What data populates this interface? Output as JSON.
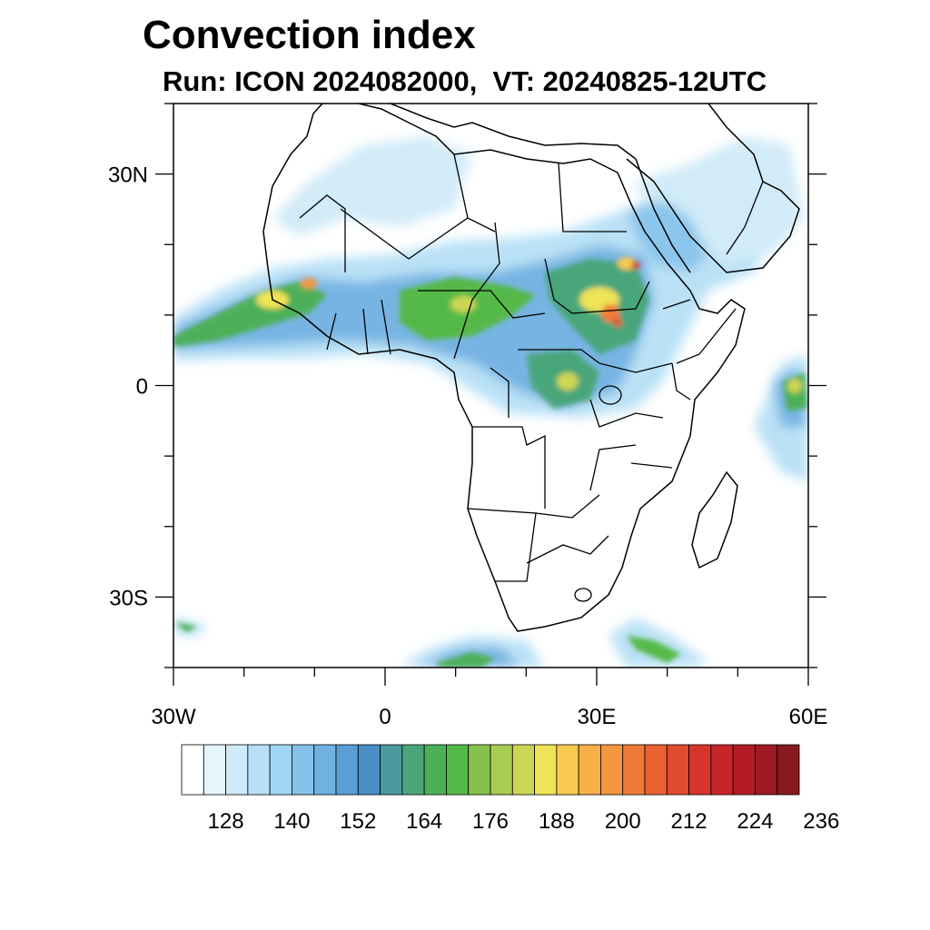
{
  "title": "Convection index",
  "subtitle": "Run: ICON 2024082000,  VT: 20240825-12UTC",
  "map": {
    "lon_range": [
      -30,
      60
    ],
    "lat_range": [
      -40,
      40
    ],
    "lon_ticks": [
      {
        "value": -30,
        "label": "30W"
      },
      {
        "value": 0,
        "label": "0"
      },
      {
        "value": 30,
        "label": "30E"
      },
      {
        "value": 60,
        "label": "60E"
      }
    ],
    "lat_ticks": [
      {
        "value": 30,
        "label": "30N"
      },
      {
        "value": 0,
        "label": "0"
      },
      {
        "value": -30,
        "label": "30S"
      }
    ]
  },
  "colorbar": {
    "colors": [
      "#ffffff",
      "#e6f4fb",
      "#cfeaf8",
      "#b7e0f6",
      "#9fd6f3",
      "#86c3eb",
      "#70b1e2",
      "#5a9ed6",
      "#4b8fc6",
      "#4a9aa0",
      "#4aa67a",
      "#4db058",
      "#55b947",
      "#86c24b",
      "#a8cc50",
      "#cdd553",
      "#efe357",
      "#f8c94f",
      "#f7b046",
      "#f4963f",
      "#f07b38",
      "#ea6132",
      "#e14b2e",
      "#d7342c",
      "#c9242a",
      "#b31c27",
      "#9e1a24",
      "#861a20"
    ],
    "labels": [
      "128",
      "140",
      "152",
      "164",
      "176",
      "188",
      "200",
      "212",
      "224",
      "236"
    ]
  }
}
